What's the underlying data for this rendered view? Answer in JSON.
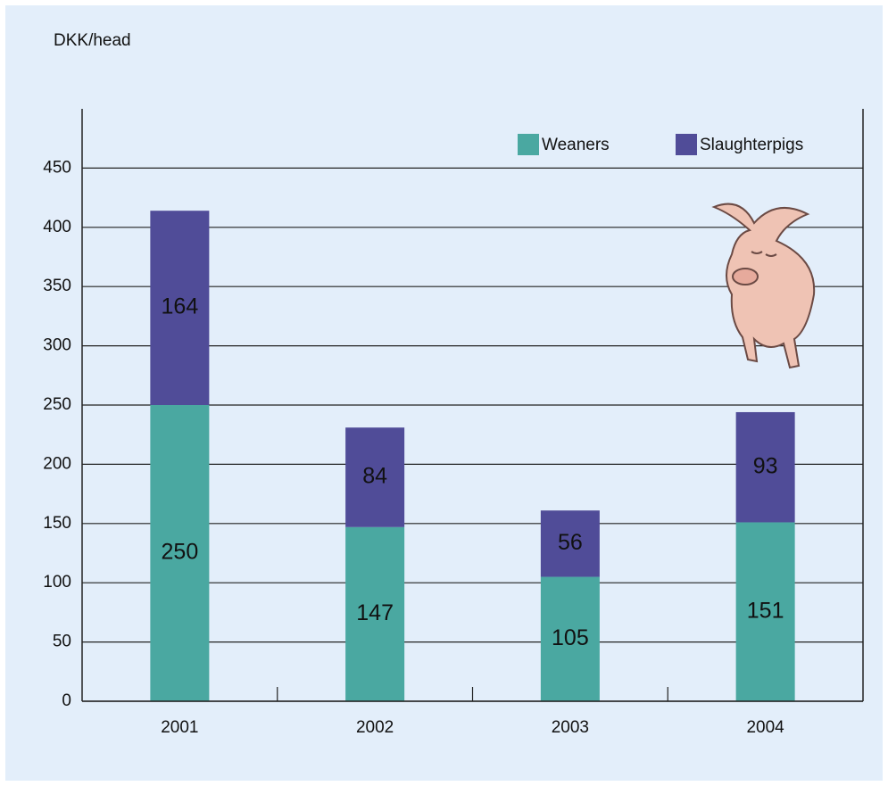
{
  "chart_data": {
    "type": "stacked_bar",
    "y_label": "DKK/head",
    "categories": [
      "2001",
      "2002",
      "2003",
      "2004"
    ],
    "series": [
      {
        "name": "Weaners",
        "color": "#4aa8a1",
        "values": [
          250,
          147,
          105,
          151
        ]
      },
      {
        "name": "Slaughterpigs",
        "color": "#504c98",
        "values": [
          164,
          84,
          56,
          93
        ]
      }
    ],
    "ylim": [
      0,
      500
    ],
    "yticks": [
      0,
      50,
      100,
      150,
      200,
      250,
      300,
      350,
      400,
      450
    ],
    "grid": true,
    "legend": "top-right"
  }
}
